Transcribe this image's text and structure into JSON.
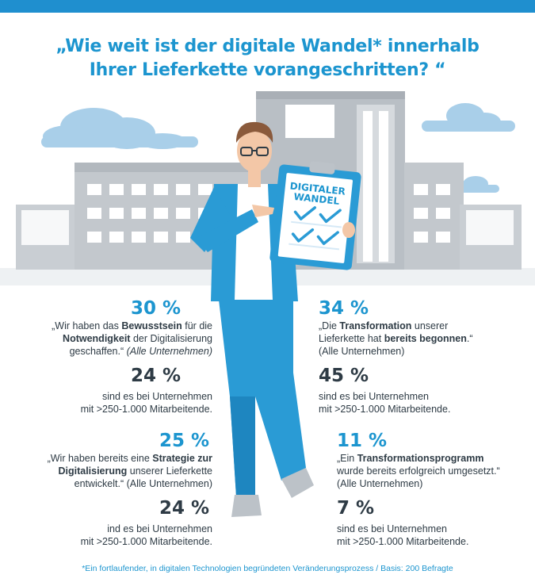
{
  "title": {
    "line1": "„Wie weit ist der digitale Wandel* innerhalb",
    "line2": "Ihrer Lieferkette vorangeschritten? “"
  },
  "clipboard": {
    "line1": "DIGITALER",
    "line2": "WANDEL"
  },
  "stats": [
    {
      "percent": "30 %",
      "quote_pre": "„Wir haben das ",
      "quote_bold1": "Bewusstsein",
      "quote_mid": " für die",
      "quote_bold2": "Notwendigkeit",
      "quote_mid2": " der Digitalisierung",
      "quote_end": "geschaffen.“ ",
      "quote_note": "(Alle Unternehmen)",
      "percent2": "24 %",
      "sub1": "sind es bei Unternehmen",
      "sub2": "mit >250-1.000 Mitarbeitende."
    },
    {
      "percent": "34 %",
      "quote_l1_pre": "„Die ",
      "quote_bold1": "Transformation",
      "quote_l1_post": " unserer",
      "quote_l2_pre": "Lieferkette hat ",
      "quote_bold2": "bereits begonnen",
      "quote_l2_post": ".“",
      "quote_note": "(Alle Unternehmen)",
      "percent2": "45 %",
      "sub1": "sind es bei Unternehmen",
      "sub2": "mit >250-1.000 Mitarbeitende."
    },
    {
      "percent": "25 %",
      "quote_l1_pre": "„Wir haben bereits eine ",
      "quote_bold1": "Strategie zur",
      "quote_bold2": "Digitalisierung",
      "quote_l2_post": " unserer Lieferkette",
      "quote_l3": "entwickelt.“ (Alle Unternehmen)",
      "percent2": "24 %",
      "sub1": "ind es bei Unternehmen",
      "sub2": "mit >250-1.000 Mitarbeitende."
    },
    {
      "percent": "11 %",
      "quote_l1_pre": "„Ein ",
      "quote_bold1": "Transformationsprogramm",
      "quote_l2": "wurde bereits erfolgreich umgesetzt.“",
      "quote_note": "(Alle Unternehmen)",
      "percent2": "7 %",
      "sub1": "sind es bei Unternehmen",
      "sub2": "mit >250-1.000 Mitarbeitende."
    }
  ],
  "footnote": "*Ein fortlaufender, in digitalen Technologien begründeten Veränderungsprozess / Basis: 200 Befragte",
  "colors": {
    "accent": "#1c95cf",
    "text": "#2e3b45",
    "building": "#c9ced3",
    "cloud": "#9fc8e6",
    "topbar": "#1f8fcf"
  }
}
